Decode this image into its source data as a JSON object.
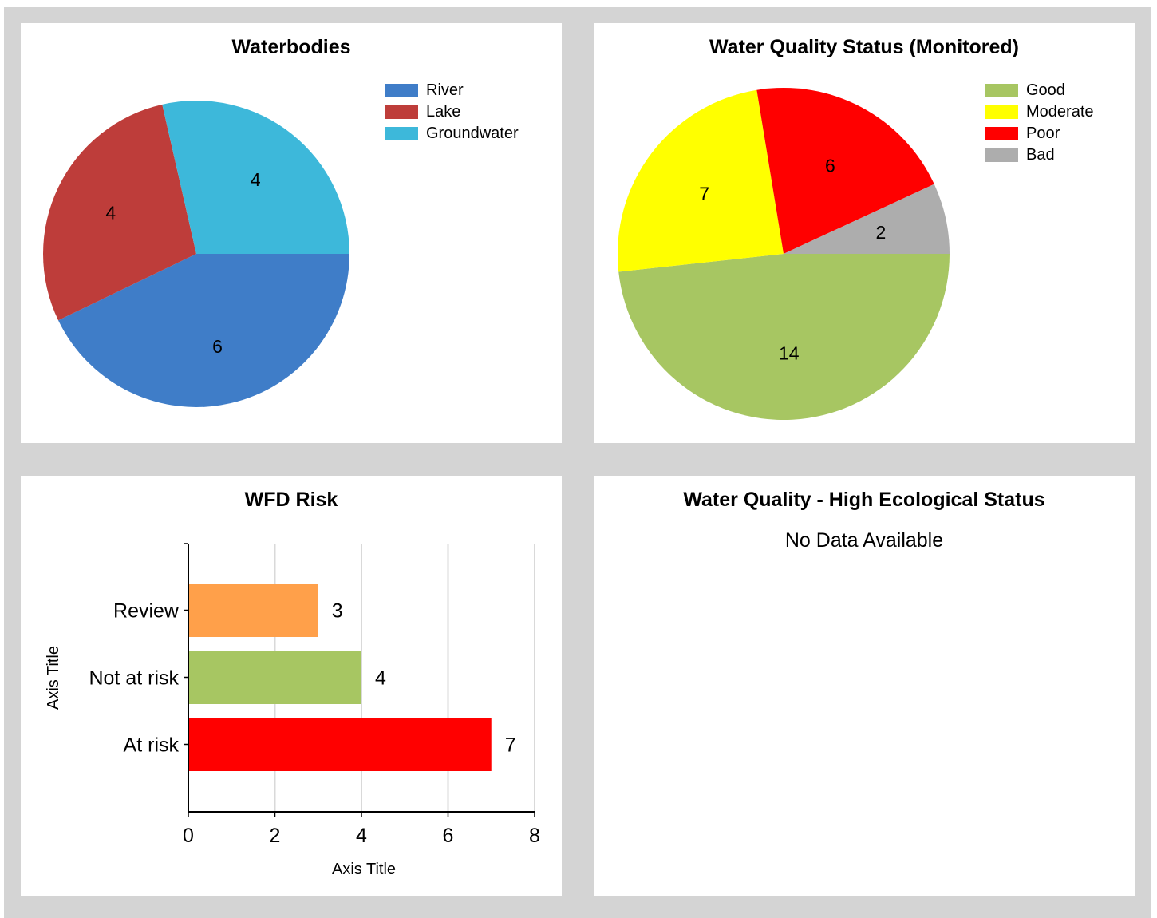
{
  "panels": [
    {
      "title": "Waterbodies",
      "chart_data": {
        "type": "pie",
        "title": "Waterbodies",
        "labels": [
          "River",
          "Lake",
          "Groundwater"
        ],
        "values": [
          6,
          4,
          4
        ],
        "colors": [
          "#3f7dc8",
          "#be3d3a",
          "#3db8da"
        ],
        "legend": "right"
      }
    },
    {
      "title": "Water Quality Status (Monitored)",
      "chart_data": {
        "type": "pie",
        "title": "Water Quality Status (Monitored)",
        "labels": [
          "Good",
          "Moderate",
          "Poor",
          "Bad"
        ],
        "values": [
          14,
          7,
          6,
          2
        ],
        "colors": [
          "#a7c662",
          "#ffff00",
          "#ff0000",
          "#adadad"
        ],
        "legend": "right"
      }
    },
    {
      "title": "WFD Risk",
      "chart_data": {
        "type": "bar",
        "orientation": "horizontal",
        "title": "WFD Risk",
        "categories": [
          "Review",
          "Not at risk",
          "At risk"
        ],
        "values": [
          3,
          4,
          7
        ],
        "colors": [
          "#ffa04a",
          "#a7c662",
          "#ff0000"
        ],
        "xlabel": "Axis Title",
        "ylabel": "Axis Title",
        "xlim": [
          0,
          8
        ],
        "xticks": [
          0,
          2,
          4,
          6,
          8
        ],
        "grid": true
      }
    },
    {
      "title": "Water Quality - High Ecological Status",
      "message": "No Data Available"
    }
  ]
}
